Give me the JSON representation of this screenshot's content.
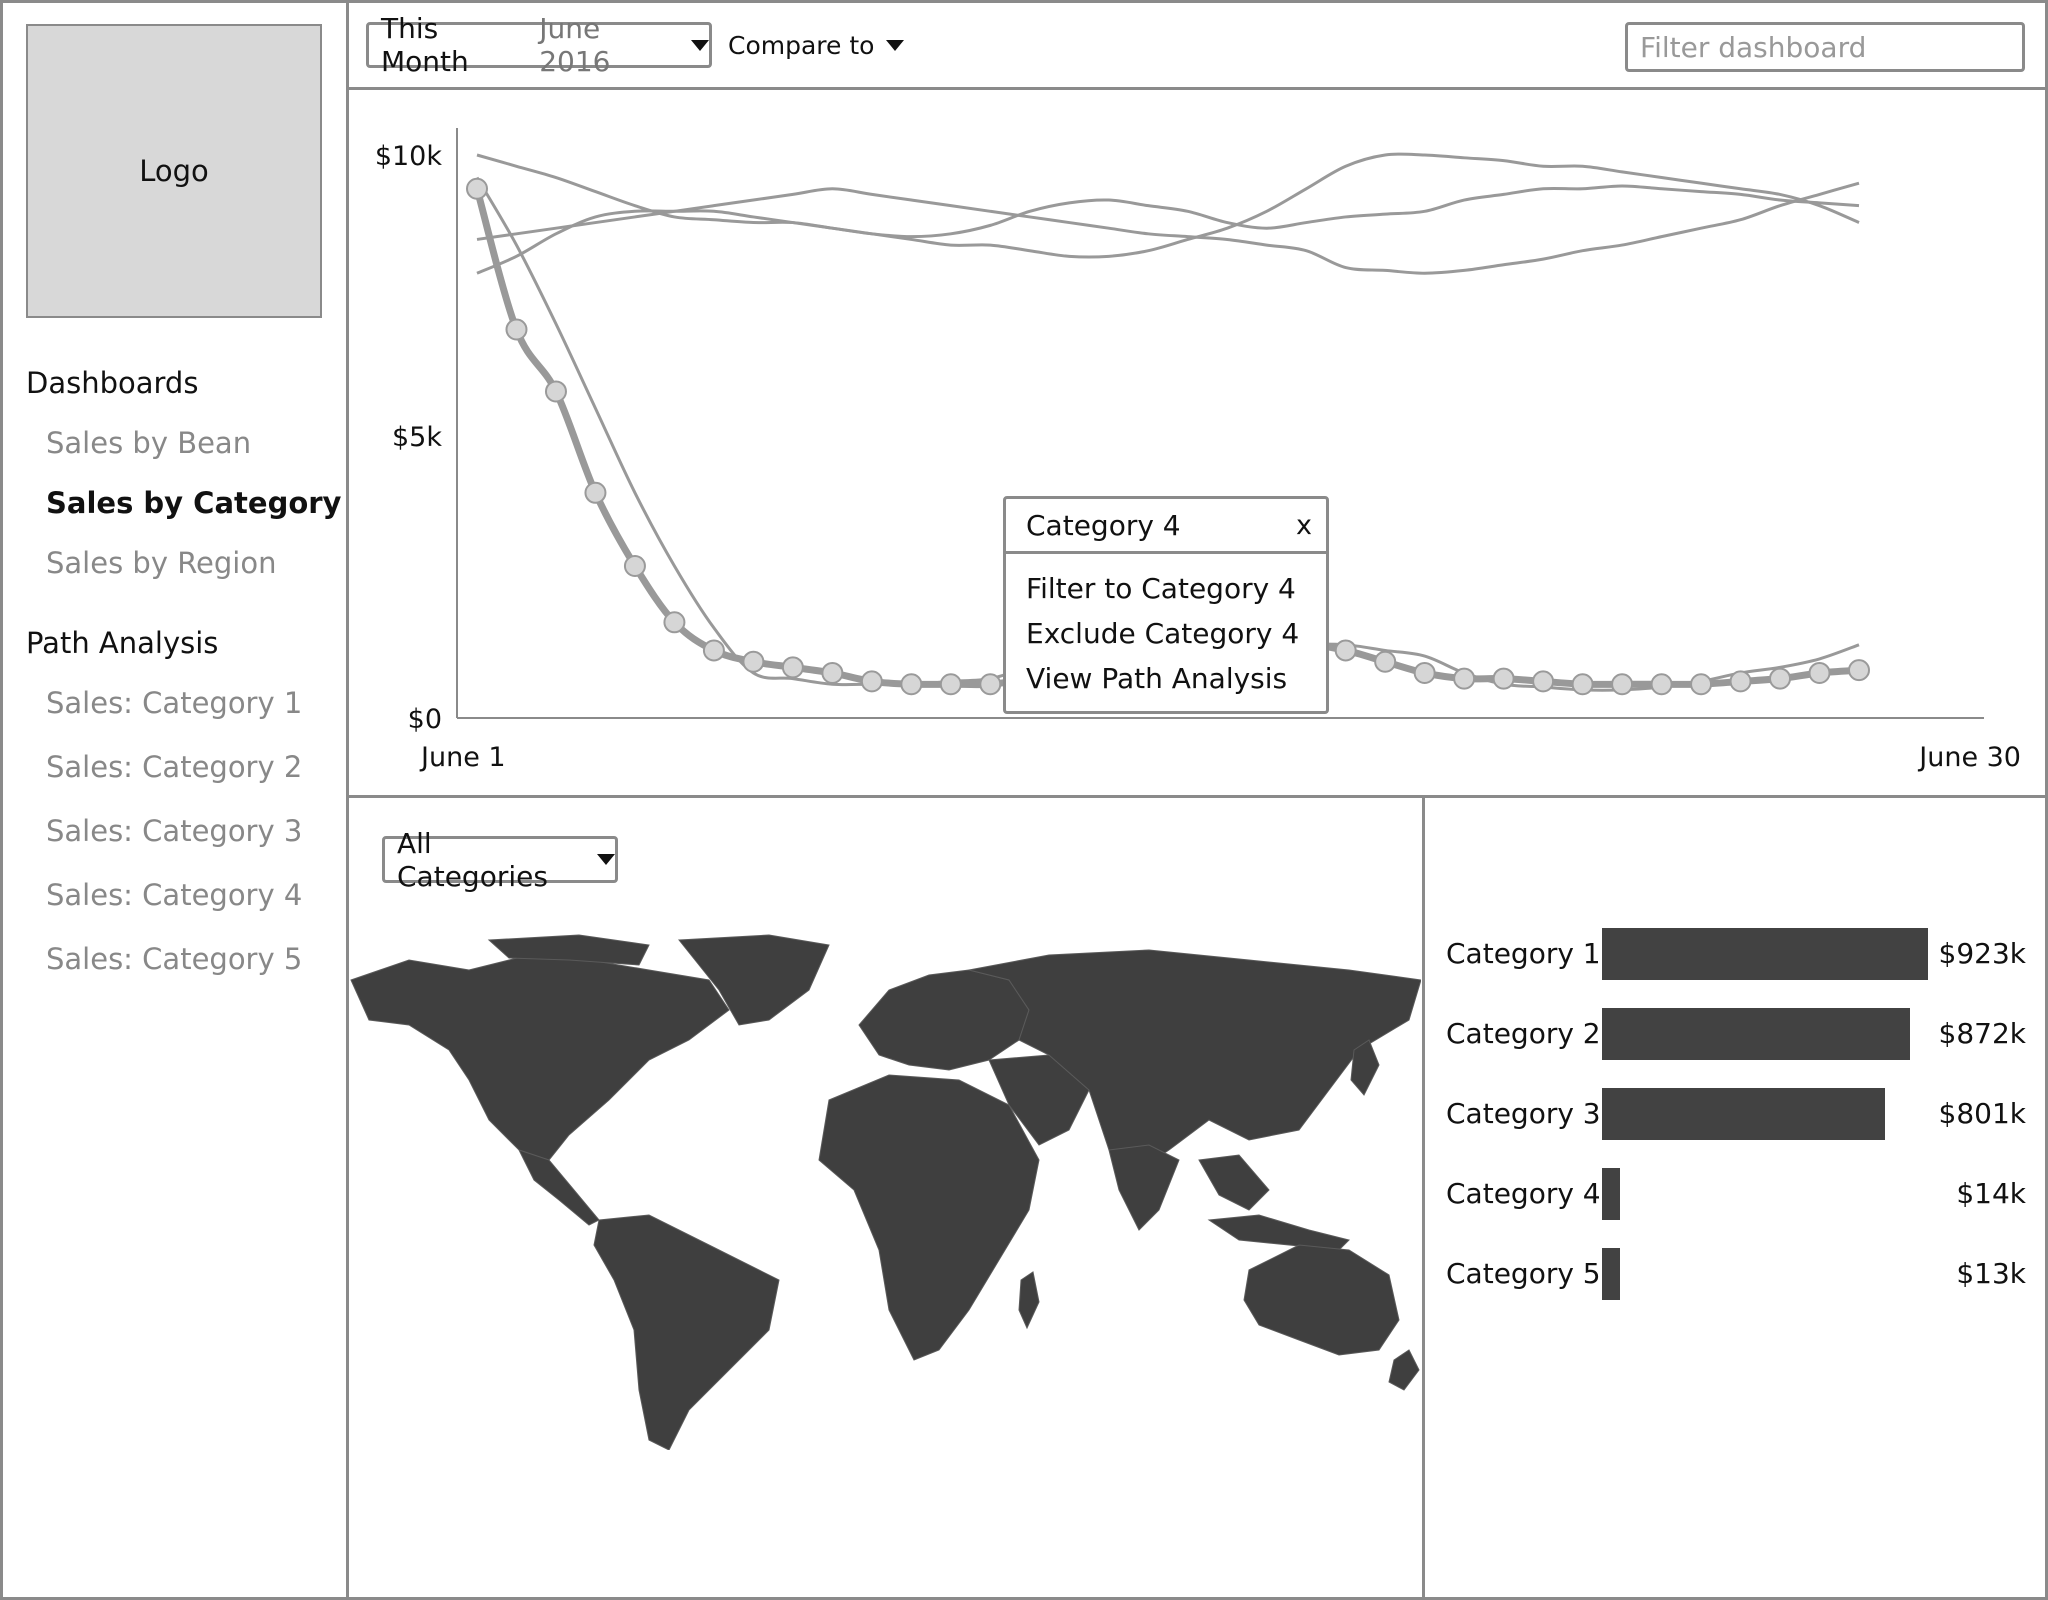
{
  "sidebar": {
    "logo": "Logo",
    "sections": [
      {
        "heading": "Dashboards",
        "items": [
          "Sales by Bean",
          "Sales by Category",
          "Sales by Region"
        ]
      },
      {
        "heading": "Path Analysis",
        "items": [
          "Sales: Category 1",
          "Sales: Category 2",
          "Sales: Category 3",
          "Sales: Category 4",
          "Sales: Category 5"
        ]
      }
    ],
    "active_item": "Sales by Category"
  },
  "toolbar": {
    "date_range_label": "This Month",
    "date_range_value": "June 2016",
    "compare_label": "Compare to",
    "filter_placeholder": "Filter dashboard"
  },
  "context_menu": {
    "title": "Category 4",
    "close_label": "x",
    "items": [
      "Filter to Category 4",
      "Exclude Category 4",
      "View Path Analysis"
    ]
  },
  "map_panel": {
    "category_select": "All Categories"
  },
  "chart_data": [
    {
      "type": "line",
      "title": "",
      "xlabel": "",
      "ylabel": "",
      "x_range": [
        "June 1",
        "June 30"
      ],
      "ylim": [
        0,
        10000
      ],
      "y_ticks": [
        "$0",
        "$5k",
        "$10k"
      ],
      "x": [
        1,
        2,
        3,
        4,
        5,
        6,
        7,
        8,
        9,
        10,
        11,
        12,
        13,
        14,
        15,
        16,
        17,
        18,
        19,
        20,
        21,
        22,
        23,
        24,
        25,
        26,
        27,
        28,
        29,
        30,
        31,
        32,
        33,
        34,
        35,
        36
      ],
      "series": [
        {
          "highlighted": true,
          "values": [
            9400,
            6900,
            5800,
            4000,
            2700,
            1700,
            1200,
            1000,
            900,
            800,
            650,
            600,
            600,
            600,
            700,
            800,
            900,
            1000,
            1100,
            1200,
            1200,
            1300,
            1200,
            1000,
            800,
            700,
            700,
            650,
            600,
            600,
            600,
            600,
            650,
            700,
            800,
            850
          ]
        },
        {
          "values": [
            9600,
            8400,
            7000,
            5500,
            4000,
            2700,
            1600,
            800,
            700,
            600,
            600,
            600,
            650,
            700,
            900,
            1000,
            1100,
            1200,
            1300,
            1200,
            1200,
            1300,
            1300,
            1200,
            1100,
            800,
            600,
            550,
            500,
            500,
            550,
            650,
            800,
            900,
            1050,
            1300
          ]
        },
        {
          "values": [
            10000,
            9800,
            9600,
            9350,
            9100,
            8900,
            8850,
            8800,
            8800,
            8700,
            8600,
            8500,
            8400,
            8400,
            8300,
            8200,
            8200,
            8300,
            8500,
            8700,
            9000,
            9400,
            9800,
            10000,
            10000,
            9950,
            9900,
            9800,
            9800,
            9700,
            9600,
            9500,
            9400,
            9300,
            9100,
            8800
          ]
        },
        {
          "values": [
            8500,
            8600,
            8700,
            8800,
            8900,
            9000,
            9100,
            9200,
            9300,
            9400,
            9300,
            9200,
            9100,
            9000,
            8900,
            8800,
            8700,
            8600,
            8550,
            8500,
            8400,
            8300,
            8000,
            7950,
            7900,
            7950,
            8050,
            8150,
            8300,
            8400,
            8550,
            8700,
            8850,
            9100,
            9300,
            9500
          ]
        },
        {
          "values": [
            7900,
            8200,
            8600,
            8900,
            9000,
            9000,
            9000,
            8900,
            8800,
            8700,
            8600,
            8550,
            8600,
            8750,
            9000,
            9150,
            9200,
            9100,
            9000,
            8800,
            8700,
            8800,
            8900,
            8950,
            9000,
            9200,
            9300,
            9400,
            9400,
            9450,
            9400,
            9350,
            9300,
            9200,
            9150,
            9100
          ]
        }
      ]
    },
    {
      "type": "bar",
      "orientation": "horizontal",
      "categories": [
        "Category 1",
        "Category 2",
        "Category 3",
        "Category 4",
        "Category 5"
      ],
      "values": [
        923,
        872,
        801,
        14,
        13
      ],
      "value_labels": [
        "$923k",
        "$872k",
        "$801k",
        "$14k",
        "$13k"
      ]
    }
  ],
  "colors": {
    "border": "#8a8a8a",
    "line": "#999999",
    "highlight_line": "#999999",
    "marker_fill": "#d6d6d6",
    "bar": "#424242",
    "map_land": "#3f3f3f",
    "logo_bg": "#d8d8d8"
  }
}
